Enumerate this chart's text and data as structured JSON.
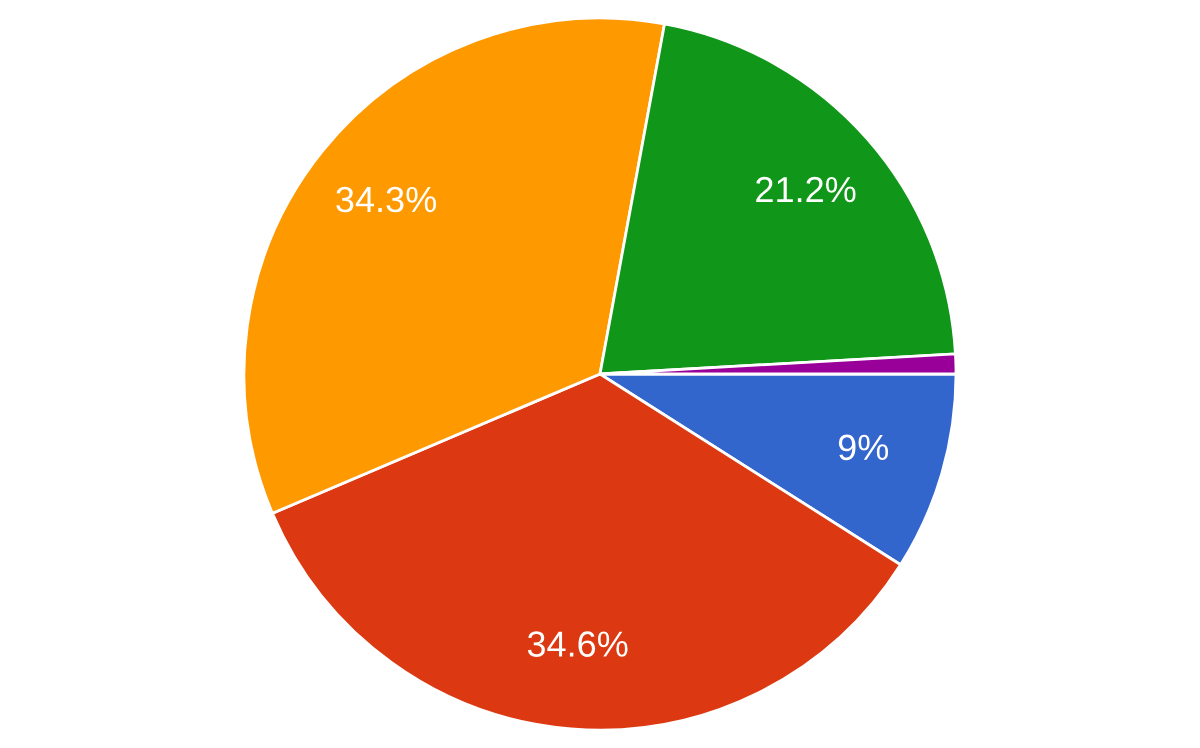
{
  "chart_data": {
    "type": "pie",
    "categories": [
      null,
      null,
      null,
      null,
      null
    ],
    "values": [
      9,
      34.6,
      34.3,
      21.2,
      0.9
    ],
    "colors": [
      "#3366cc",
      "#dc3912",
      "#ff9900",
      "#109618",
      "#990099"
    ],
    "value_labels": [
      "9%",
      "34.6%",
      "34.3%",
      "21.2%",
      null
    ]
  }
}
